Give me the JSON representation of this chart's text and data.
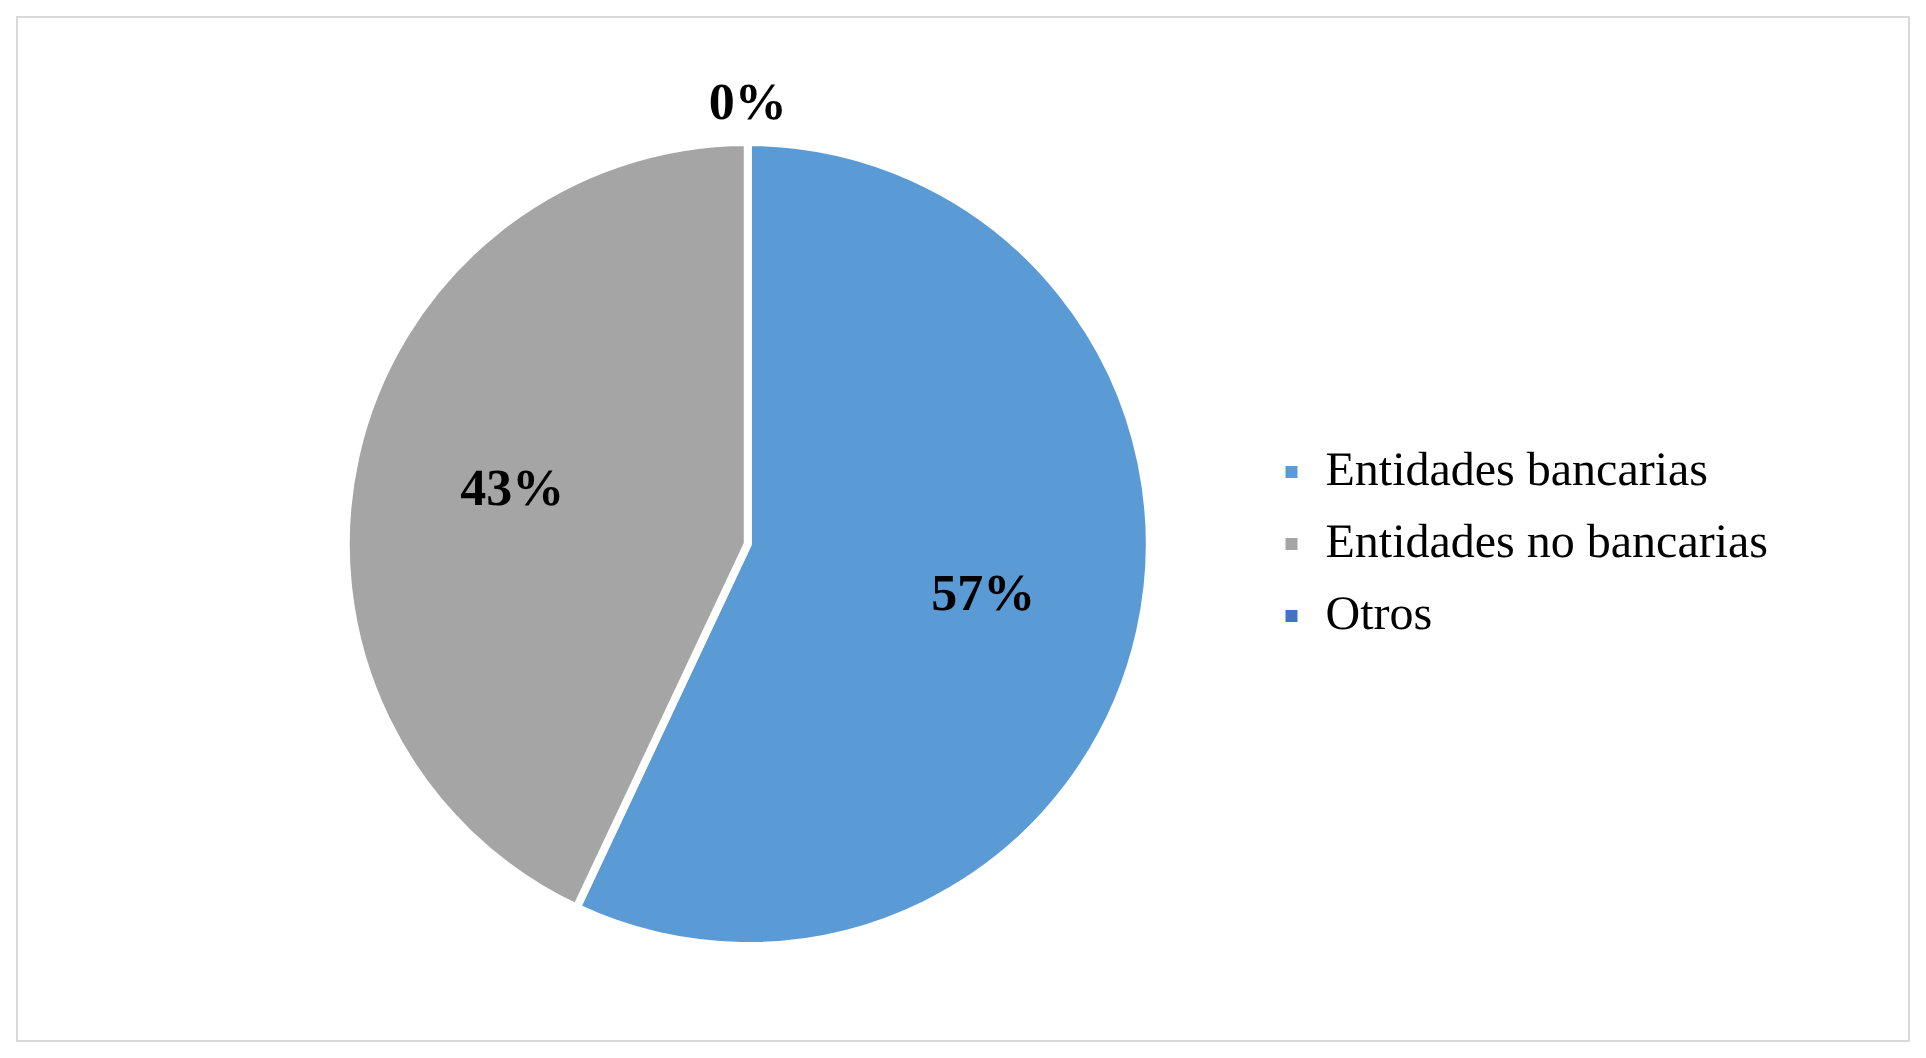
{
  "chart_data": {
    "type": "pie",
    "categories": [
      "Entidades bancarias",
      "Entidades no bancarias",
      "Otros"
    ],
    "values": [
      57,
      43,
      0
    ],
    "colors": [
      "#5b9bd5",
      "#a5a5a5",
      "#4472c4"
    ],
    "value_labels": [
      "57%",
      "43%",
      "0%"
    ],
    "legend": "right"
  }
}
